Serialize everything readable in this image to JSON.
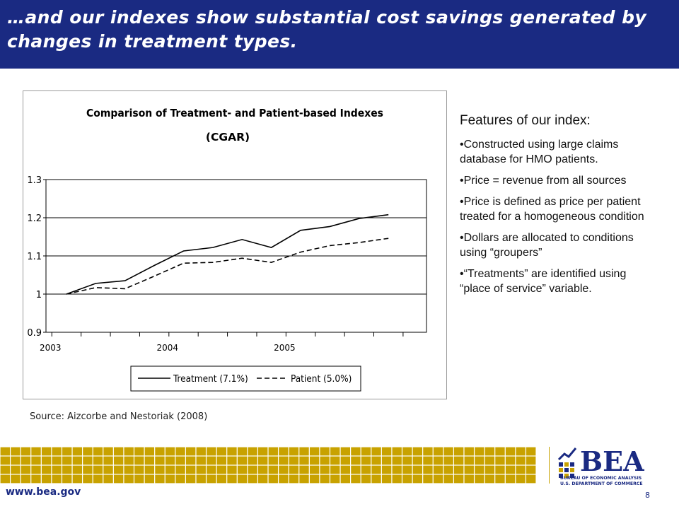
{
  "slide": {
    "title": "…and our indexes show substantial cost savings generated by changes in treatment types.",
    "source": "Source:  Aizcorbe and Nestoriak (2008)",
    "url": "www.bea.gov",
    "page_number": "8"
  },
  "features": {
    "heading": "Features of our index:",
    "items": [
      "•Constructed using large claims database for HMO patients.",
      "•Price = revenue from all sources",
      "•Price is defined as price per patient treated for a homogeneous condition",
      "•Dollars are allocated to conditions using “groupers”",
      "•“Treatments” are identified using “place of service” variable."
    ]
  },
  "logo": {
    "name": "BEA",
    "line1": "BUREAU OF ECONOMIC ANALYSIS",
    "line2": "U.S. DEPARTMENT OF COMMERCE",
    "colors": {
      "navy": "#1a2a82",
      "gold": "#c8a200"
    }
  },
  "chart_data": {
    "type": "line",
    "title": "Comparison of Treatment- and Patient-based Indexes",
    "subtitle": "(CGAR)",
    "x_tick_labels": [
      "2003",
      "2004",
      "2005"
    ],
    "y_tick_labels": [
      "0.9",
      "1",
      "1.1",
      "1.2",
      "1.3"
    ],
    "ylim": [
      0.9,
      1.3
    ],
    "grid": "horizontal",
    "legend_placement": "bottom",
    "series": [
      {
        "name": "Treatment  (7.1%)",
        "style": "solid",
        "values": [
          1.0,
          1.028,
          1.035,
          1.075,
          1.113,
          1.122,
          1.143,
          1.122,
          1.167,
          1.177,
          1.198,
          1.208
        ]
      },
      {
        "name": "Patient (5.0%)",
        "style": "dashed",
        "values": [
          1.0,
          1.017,
          1.014,
          1.047,
          1.081,
          1.083,
          1.094,
          1.083,
          1.11,
          1.127,
          1.135,
          1.146
        ]
      }
    ]
  }
}
